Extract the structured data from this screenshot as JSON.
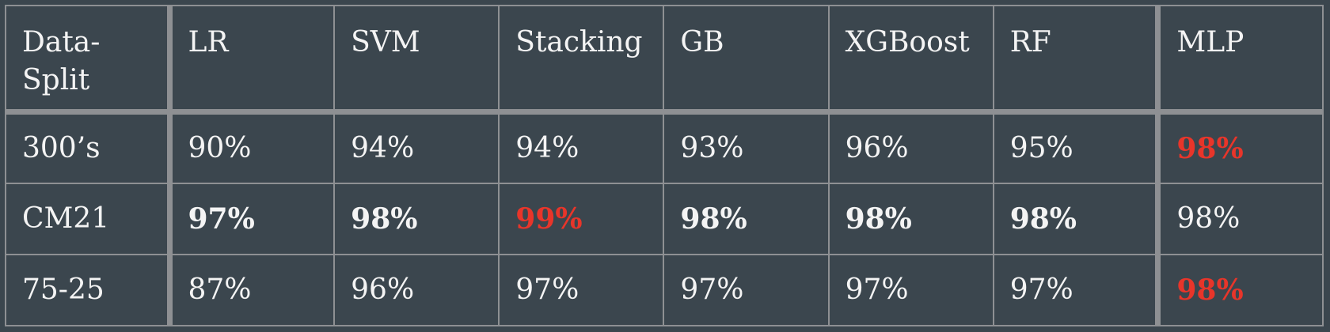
{
  "table": {
    "headers": [
      "Data-Split",
      "LR",
      "SVM",
      "Stacking",
      "GB",
      "XGBoost",
      "RF",
      "MLP"
    ],
    "rows": [
      {
        "label": "300’s",
        "cells": [
          {
            "value": "90%",
            "style": "normal"
          },
          {
            "value": "94%",
            "style": "normal"
          },
          {
            "value": "94%",
            "style": "normal"
          },
          {
            "value": "93%",
            "style": "normal"
          },
          {
            "value": "96%",
            "style": "normal"
          },
          {
            "value": "95%",
            "style": "normal"
          },
          {
            "value": "98%",
            "style": "best"
          }
        ]
      },
      {
        "label": "CM21",
        "cells": [
          {
            "value": "97%",
            "style": "bold"
          },
          {
            "value": "98%",
            "style": "bold"
          },
          {
            "value": "99%",
            "style": "best"
          },
          {
            "value": "98%",
            "style": "bold"
          },
          {
            "value": "98%",
            "style": "bold"
          },
          {
            "value": "98%",
            "style": "bold"
          },
          {
            "value": "98%",
            "style": "normal"
          }
        ]
      },
      {
        "label": "75-25",
        "cells": [
          {
            "value": "87%",
            "style": "normal"
          },
          {
            "value": "96%",
            "style": "normal"
          },
          {
            "value": "97%",
            "style": "normal"
          },
          {
            "value": "97%",
            "style": "normal"
          },
          {
            "value": "97%",
            "style": "normal"
          },
          {
            "value": "97%",
            "style": "normal"
          },
          {
            "value": "98%",
            "style": "best"
          }
        ]
      }
    ]
  },
  "colors": {
    "background": "#3b464e",
    "border": "#8e9093",
    "text": "#f4f4f4",
    "highlight": "#e8352a"
  }
}
